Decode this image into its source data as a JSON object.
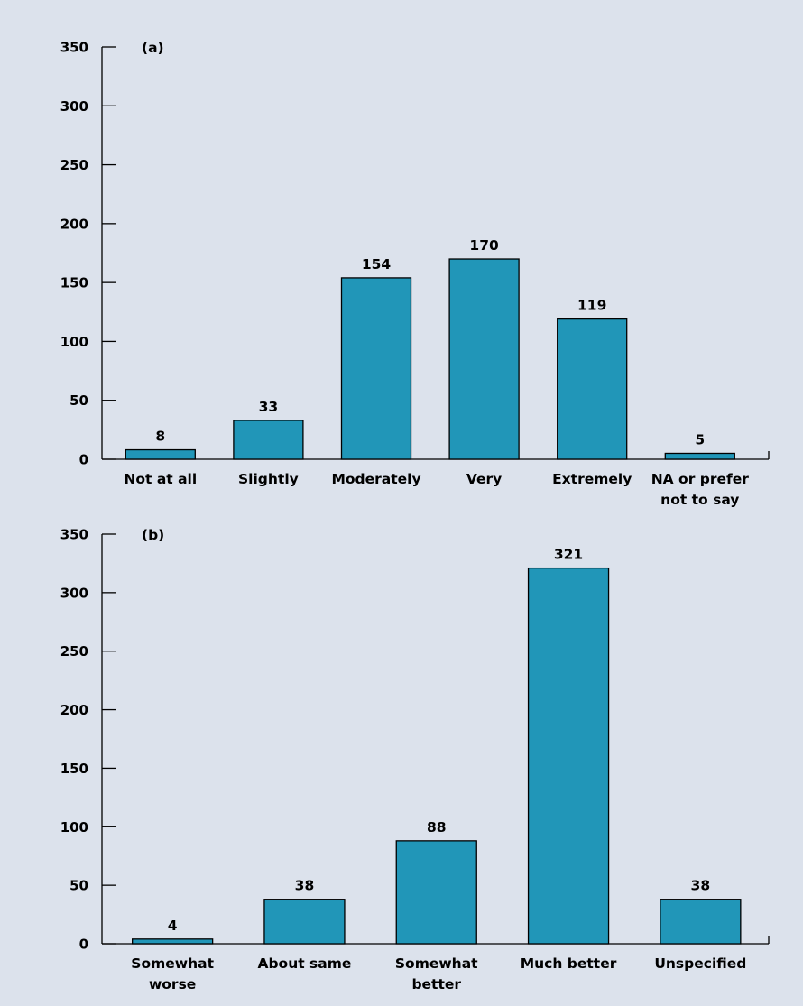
{
  "colors": {
    "background": "#dce2ec",
    "bar_fill": "#2196b8",
    "axis": "#000000",
    "text": "#000000"
  },
  "chart_data": [
    {
      "type": "bar",
      "panel_label": "(a)",
      "categories": [
        [
          "Not at all"
        ],
        [
          "Slightly"
        ],
        [
          "Moderately"
        ],
        [
          "Very"
        ],
        [
          "Extremely"
        ],
        [
          "NA or prefer",
          "not to say"
        ]
      ],
      "values": [
        8,
        33,
        154,
        170,
        119,
        5
      ],
      "data_labels": [
        "8",
        "33",
        "154",
        "170",
        "119",
        "5"
      ],
      "yticks": [
        0,
        50,
        100,
        150,
        200,
        250,
        300,
        350
      ],
      "ylim": [
        0,
        350
      ],
      "title": "",
      "xlabel": "",
      "ylabel": "",
      "grid": false,
      "legend": "none"
    },
    {
      "type": "bar",
      "panel_label": "(b)",
      "categories": [
        [
          "Somewhat",
          "worse"
        ],
        [
          "About same"
        ],
        [
          "Somewhat",
          "better"
        ],
        [
          "Much better"
        ],
        [
          "Unspecified"
        ]
      ],
      "values": [
        4,
        38,
        88,
        321,
        38
      ],
      "data_labels": [
        "4",
        "38",
        "88",
        "321",
        "38"
      ],
      "yticks": [
        0,
        50,
        100,
        150,
        200,
        250,
        300,
        350
      ],
      "ylim": [
        0,
        350
      ],
      "title": "",
      "xlabel": "",
      "ylabel": "",
      "grid": false,
      "legend": "none"
    }
  ]
}
